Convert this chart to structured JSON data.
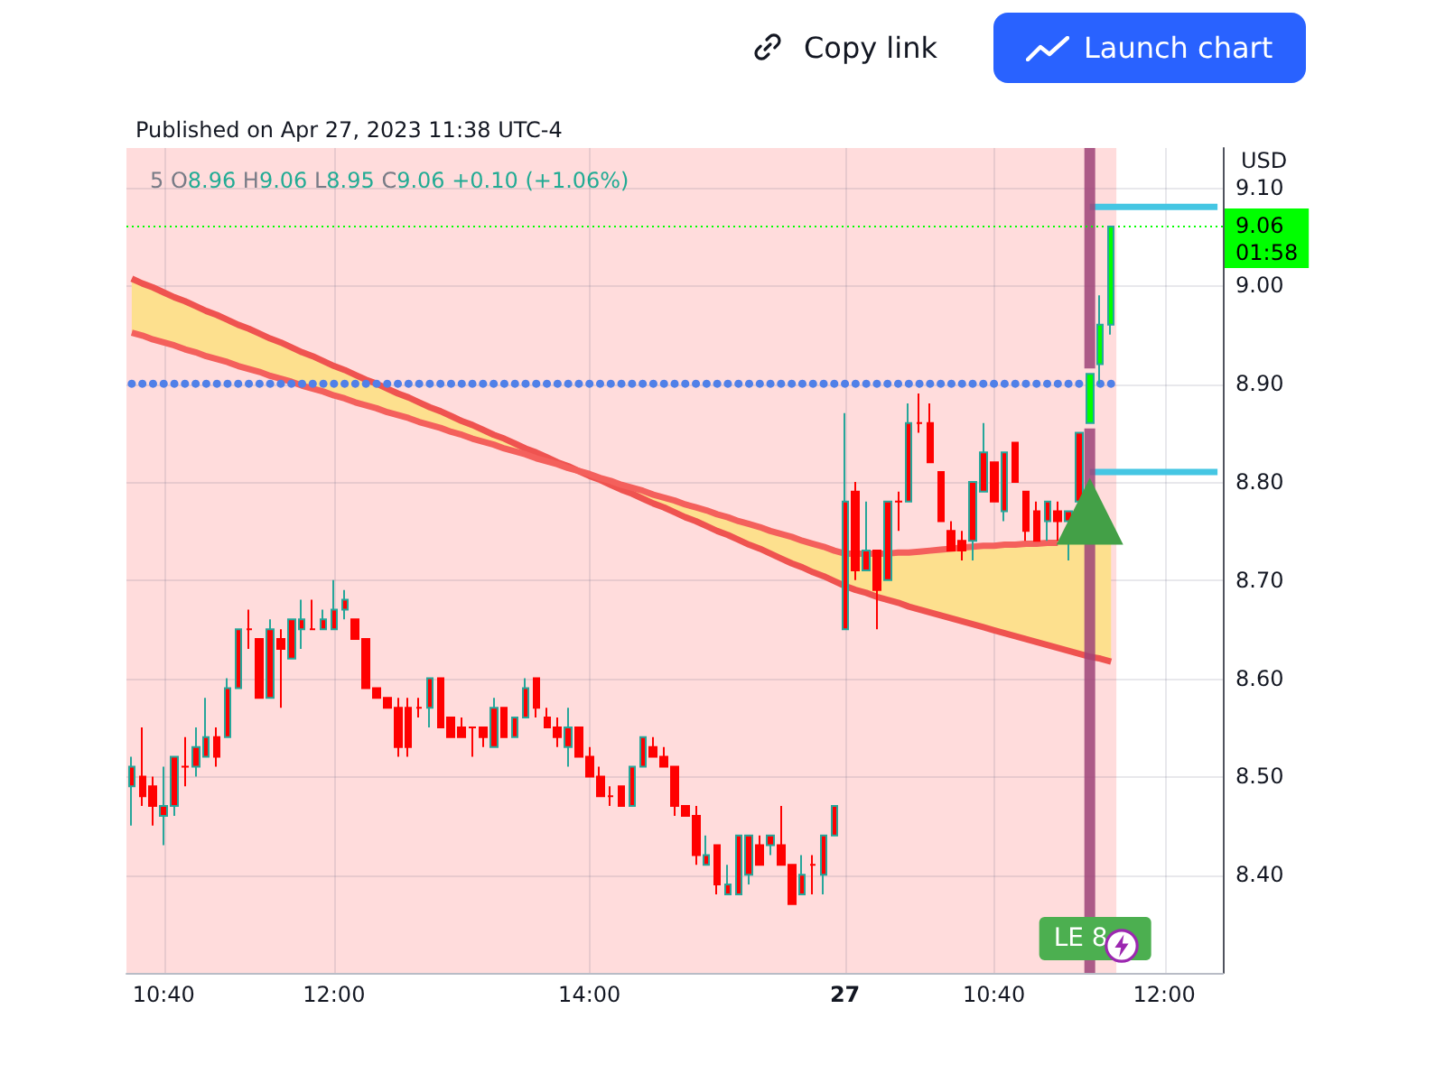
{
  "chart_data": {
    "type": "candlestick",
    "title": "Published on Apr 27, 2023 11:38 UTC-4",
    "subtitle": "5 O8.96 H9.06 L8.95 C9.06 +0.10 (+1.06%)",
    "ylabel": "USD",
    "categories": [
      null,
      null,
      null,
      "10:40",
      null,
      null,
      null,
      null,
      null,
      null,
      null,
      null,
      null,
      null,
      null,
      null,
      null,
      null,
      null,
      "12:00",
      null,
      null,
      null,
      null,
      null,
      null,
      null,
      null,
      null,
      null,
      null,
      null,
      null,
      null,
      null,
      null,
      null,
      null,
      null,
      null,
      null,
      null,
      null,
      "14:00",
      null,
      null,
      null,
      null,
      null,
      null,
      null,
      null,
      null,
      null,
      null,
      null,
      null,
      null,
      null,
      null,
      null,
      null,
      null,
      null,
      null,
      null,
      null,
      "27",
      null,
      null,
      null,
      null,
      null,
      null,
      null,
      null,
      null,
      null,
      null,
      null,
      null,
      "10:40",
      null,
      null,
      null,
      null,
      null,
      null,
      null,
      null,
      null,
      null,
      null,
      null,
      null,
      null,
      null,
      "12:00",
      null,
      null,
      null,
      null,
      null
    ],
    "ohlc": [
      [
        8.49,
        8.52,
        8.45,
        8.51
      ],
      [
        8.5,
        8.55,
        8.47,
        8.48
      ],
      [
        8.49,
        8.5,
        8.45,
        8.47
      ],
      [
        8.46,
        8.51,
        8.43,
        8.47
      ],
      [
        8.47,
        8.52,
        8.46,
        8.52
      ],
      [
        8.51,
        8.54,
        8.49,
        8.51
      ],
      [
        8.51,
        8.55,
        8.5,
        8.53
      ],
      [
        8.52,
        8.58,
        8.52,
        8.54
      ],
      [
        8.54,
        8.55,
        8.51,
        8.52
      ],
      [
        8.54,
        8.6,
        8.54,
        8.59
      ],
      [
        8.59,
        8.65,
        8.59,
        8.65
      ],
      [
        8.65,
        8.67,
        8.63,
        8.65
      ],
      [
        8.64,
        8.64,
        8.58,
        8.58
      ],
      [
        8.58,
        8.66,
        8.58,
        8.65
      ],
      [
        8.64,
        8.65,
        8.57,
        8.63
      ],
      [
        8.62,
        8.66,
        8.62,
        8.66
      ],
      [
        8.65,
        8.68,
        8.63,
        8.66
      ],
      [
        8.65,
        8.68,
        8.65,
        8.65
      ],
      [
        8.65,
        8.67,
        8.65,
        8.66
      ],
      [
        8.65,
        8.7,
        8.65,
        8.67
      ],
      [
        8.67,
        8.69,
        8.66,
        8.68
      ],
      [
        8.66,
        8.66,
        8.64,
        8.64
      ],
      [
        8.64,
        8.64,
        8.59,
        8.59
      ],
      [
        8.59,
        8.59,
        8.58,
        8.58
      ],
      [
        8.58,
        8.58,
        8.57,
        8.57
      ],
      [
        8.57,
        8.58,
        8.52,
        8.53
      ],
      [
        8.57,
        8.58,
        8.52,
        8.53
      ],
      [
        8.57,
        8.58,
        8.56,
        8.57
      ],
      [
        8.57,
        8.6,
        8.55,
        8.6
      ],
      [
        8.6,
        8.6,
        8.55,
        8.55
      ],
      [
        8.56,
        8.56,
        8.54,
        8.54
      ],
      [
        8.55,
        8.56,
        8.54,
        8.54
      ],
      [
        8.55,
        8.55,
        8.52,
        8.55
      ],
      [
        8.55,
        8.55,
        8.53,
        8.54
      ],
      [
        8.53,
        8.58,
        8.53,
        8.57
      ],
      [
        8.57,
        8.57,
        8.54,
        8.54
      ],
      [
        8.54,
        8.56,
        8.54,
        8.56
      ],
      [
        8.56,
        8.6,
        8.56,
        8.59
      ],
      [
        8.6,
        8.6,
        8.56,
        8.57
      ],
      [
        8.56,
        8.57,
        8.55,
        8.55
      ],
      [
        8.55,
        8.56,
        8.53,
        8.54
      ],
      [
        8.53,
        8.57,
        8.51,
        8.55
      ],
      [
        8.55,
        8.55,
        8.52,
        8.52
      ],
      [
        8.52,
        8.53,
        8.5,
        8.5
      ],
      [
        8.5,
        8.51,
        8.48,
        8.48
      ],
      [
        8.48,
        8.49,
        8.47,
        8.48
      ],
      [
        8.49,
        8.49,
        8.47,
        8.47
      ],
      [
        8.47,
        8.51,
        8.47,
        8.51
      ],
      [
        8.51,
        8.54,
        8.51,
        8.54
      ],
      [
        8.53,
        8.54,
        8.52,
        8.52
      ],
      [
        8.52,
        8.53,
        8.51,
        8.51
      ],
      [
        8.51,
        8.51,
        8.46,
        8.47
      ],
      [
        8.47,
        8.47,
        8.46,
        8.46
      ],
      [
        8.46,
        8.47,
        8.41,
        8.42
      ],
      [
        8.41,
        8.44,
        8.41,
        8.42
      ],
      [
        8.43,
        8.43,
        8.38,
        8.39
      ],
      [
        8.38,
        8.41,
        8.38,
        8.39
      ],
      [
        8.38,
        8.44,
        8.38,
        8.44
      ],
      [
        8.4,
        8.44,
        8.39,
        8.44
      ],
      [
        8.43,
        8.44,
        8.41,
        8.41
      ],
      [
        8.43,
        8.44,
        8.42,
        8.44
      ],
      [
        8.43,
        8.47,
        8.41,
        8.41
      ],
      [
        8.41,
        8.41,
        8.37,
        8.37
      ],
      [
        8.38,
        8.42,
        8.38,
        8.4
      ],
      [
        8.41,
        8.42,
        8.38,
        8.41
      ],
      [
        8.4,
        8.44,
        8.38,
        8.44
      ],
      [
        8.44,
        8.47,
        8.44,
        8.47
      ],
      [
        8.65,
        8.87,
        8.65,
        8.78
      ],
      [
        8.79,
        8.8,
        8.7,
        8.71
      ],
      [
        8.71,
        8.78,
        8.71,
        8.73
      ],
      [
        8.73,
        8.73,
        8.65,
        8.69
      ],
      [
        8.7,
        8.78,
        8.7,
        8.78
      ],
      [
        8.78,
        8.79,
        8.75,
        8.78
      ],
      [
        8.78,
        8.88,
        8.78,
        8.86
      ],
      [
        8.86,
        8.89,
        8.85,
        8.86
      ],
      [
        8.86,
        8.88,
        8.82,
        8.82
      ],
      [
        8.81,
        8.81,
        8.76,
        8.76
      ],
      [
        8.75,
        8.76,
        8.73,
        8.73
      ],
      [
        8.74,
        8.75,
        8.72,
        8.73
      ],
      [
        8.74,
        8.8,
        8.72,
        8.8
      ],
      [
        8.79,
        8.86,
        8.79,
        8.83
      ],
      [
        8.82,
        8.82,
        8.78,
        8.78
      ],
      [
        8.77,
        8.83,
        8.76,
        8.83
      ],
      [
        8.84,
        8.84,
        8.8,
        8.8
      ],
      [
        8.79,
        8.79,
        8.74,
        8.75
      ],
      [
        8.77,
        8.78,
        8.74,
        8.74
      ],
      [
        8.76,
        8.78,
        8.74,
        8.78
      ],
      [
        8.77,
        8.78,
        8.74,
        8.76
      ],
      [
        8.76,
        8.77,
        8.72,
        8.77
      ],
      [
        8.78,
        8.85,
        8.78,
        8.85
      ],
      [
        8.86,
        8.91,
        8.86,
        8.91
      ],
      [
        8.92,
        8.99,
        8.9,
        8.96
      ],
      [
        8.96,
        9.06,
        8.95,
        9.06
      ],
      null,
      null,
      null,
      null,
      null,
      null,
      null,
      null,
      null,
      null
    ],
    "colors": [
      "#ff0000",
      "#ff0000",
      "#ff0000",
      "#ff0000",
      "#ff0000",
      "#ff0000",
      "#ff0000",
      "#ff0000",
      "#ff0000",
      "#ff0000",
      "#ff0000",
      "#ff0000",
      "#ff0000",
      "#ff0000",
      "#ff0000",
      "#ff0000",
      "#ff0000",
      "#ff0000",
      "#ff0000",
      "#ff0000",
      "#ff0000",
      "#ff0000",
      "#ff0000",
      "#ff0000",
      "#ff0000",
      "#ff0000",
      "#ff0000",
      "#ff0000",
      "#ff0000",
      "#ff0000",
      "#ff0000",
      "#ff0000",
      "#ff0000",
      "#ff0000",
      "#ff0000",
      "#ff0000",
      "#ff0000",
      "#ff0000",
      "#ff0000",
      "#ff0000",
      "#ff0000",
      "#ff0000",
      "#ff0000",
      "#ff0000",
      "#ff0000",
      "#ff0000",
      "#ff0000",
      "#ff0000",
      "#ff0000",
      "#ff0000",
      "#ff0000",
      "#ff0000",
      "#ff0000",
      "#ff0000",
      "#ff0000",
      "#ff0000",
      "#ff0000",
      "#ff0000",
      "#ff0000",
      "#ff0000",
      "#ff0000",
      "#ff0000",
      "#ff0000",
      "#ff0000",
      "#ff0000",
      "#ff0000",
      "#ff0000",
      "#ff0000",
      "#ff0000",
      "#ff0000",
      "#ff0000",
      "#ff0000",
      "#ff0000",
      "#ff0000",
      "#ff0000",
      "#ff0000",
      "#ff0000",
      "#ff0000",
      "#ff0000",
      "#ff0000",
      "#ff0000",
      "#ff0000",
      "#ff0000",
      "#ff0000",
      "#ff0000",
      "#ff0000",
      "#ff0000",
      "#ff0000",
      "#ff0000",
      "#ff0000",
      "#00ff00",
      "#00ff00",
      "#00ff00",
      null,
      null,
      null,
      null,
      null,
      null,
      null,
      null,
      null,
      null
    ],
    "series": [
      {
        "type": "line",
        "color": "#ef5350",
        "values": [
          9.007,
          9.002,
          8.998,
          8.993,
          8.988,
          8.984,
          8.979,
          8.974,
          8.97,
          8.965,
          8.96,
          8.956,
          8.951,
          8.946,
          8.942,
          8.937,
          8.932,
          8.928,
          8.923,
          8.918,
          8.914,
          8.909,
          8.904,
          8.9,
          8.895,
          8.89,
          8.886,
          8.881,
          8.876,
          8.872,
          8.867,
          8.862,
          8.858,
          8.853,
          8.848,
          8.844,
          8.839,
          8.834,
          8.83,
          8.825,
          8.82,
          8.816,
          8.811,
          8.806,
          8.802,
          8.797,
          8.792,
          8.788,
          8.783,
          8.778,
          8.774,
          8.769,
          8.764,
          8.76,
          8.755,
          8.75,
          8.746,
          8.741,
          8.736,
          8.732,
          8.727,
          8.722,
          8.717,
          8.713,
          8.708,
          8.704,
          8.699,
          8.694,
          8.69,
          8.687,
          8.683,
          8.68,
          8.677,
          8.673,
          8.67,
          8.667,
          8.664,
          8.661,
          8.658,
          8.655,
          8.652,
          8.649,
          8.646,
          8.643,
          8.64,
          8.637,
          8.634,
          8.631,
          8.628,
          8.625,
          8.622,
          8.62,
          8.617,
          null,
          null,
          null,
          null,
          null,
          null,
          null,
          null,
          null,
          null
        ]
      },
      {
        "type": "line",
        "color": "#f4605c",
        "values": [
          8.952,
          8.949,
          8.945,
          8.942,
          8.939,
          8.935,
          8.932,
          8.928,
          8.925,
          8.922,
          8.918,
          8.915,
          8.912,
          8.908,
          8.905,
          8.902,
          8.898,
          8.895,
          8.892,
          8.888,
          8.885,
          8.881,
          8.878,
          8.875,
          8.871,
          8.868,
          8.865,
          8.861,
          8.858,
          8.855,
          8.851,
          8.848,
          8.844,
          8.841,
          8.838,
          8.834,
          8.831,
          8.828,
          8.824,
          8.821,
          8.818,
          8.814,
          8.811,
          8.808,
          8.804,
          8.801,
          8.797,
          8.794,
          8.791,
          8.787,
          8.784,
          8.781,
          8.777,
          8.774,
          8.771,
          8.767,
          8.764,
          8.76,
          8.757,
          8.754,
          8.75,
          8.747,
          8.744,
          8.74,
          8.737,
          8.734,
          8.73,
          8.727,
          8.727,
          8.727,
          8.727,
          8.727,
          8.728,
          8.728,
          8.729,
          8.73,
          8.731,
          8.732,
          8.733,
          8.734,
          8.735,
          8.735,
          8.736,
          8.736,
          8.737,
          8.737,
          8.738,
          8.738,
          null,
          null,
          null,
          null,
          null,
          null,
          null,
          null,
          null,
          null,
          null,
          null,
          null,
          null,
          null
        ],
        "lower": [
          8.952,
          8.949,
          8.945,
          8.942,
          8.939,
          8.935,
          8.932,
          8.928,
          8.925,
          8.922,
          8.918,
          8.915,
          8.912,
          8.908,
          8.905,
          8.902,
          8.898,
          8.895,
          8.892,
          8.888,
          8.885,
          8.881,
          8.878,
          8.875,
          8.871,
          8.868,
          8.865,
          8.861,
          8.858,
          8.855,
          8.851,
          8.848,
          8.844,
          8.841,
          8.838,
          8.834,
          8.831,
          8.828,
          8.824,
          8.821,
          8.818,
          8.814,
          8.811,
          8.806,
          8.802,
          8.797,
          8.792,
          8.788,
          8.783,
          8.778,
          8.774,
          8.769,
          8.764,
          8.76,
          8.755,
          8.75,
          8.746,
          8.741,
          8.736,
          8.732,
          8.727,
          8.722,
          8.717,
          8.713,
          8.708,
          8.704,
          8.699,
          8.694,
          null,
          8.687,
          null,
          null,
          8.677,
          8.673,
          8.67,
          8.667,
          8.664,
          8.661,
          8.658,
          8.655,
          8.652,
          8.649,
          8.646,
          8.643,
          8.64,
          8.637,
          8.634,
          8.631,
          8.628,
          8.625,
          8.622,
          8.62,
          8.617,
          null,
          null,
          null,
          null,
          null,
          null,
          null,
          null,
          null,
          null
        ],
        "upper": [
          9.007,
          9.002,
          8.998,
          8.993,
          8.988,
          8.984,
          8.979,
          8.974,
          8.97,
          8.965,
          8.96,
          8.956,
          8.951,
          8.946,
          8.942,
          8.937,
          8.932,
          8.928,
          8.923,
          8.918,
          8.914,
          8.909,
          8.904,
          8.9,
          8.895,
          8.89,
          8.886,
          8.881,
          8.876,
          8.872,
          8.867,
          8.862,
          8.858,
          8.853,
          8.848,
          8.844,
          8.839,
          8.834,
          8.83,
          8.825,
          8.82,
          8.816,
          8.811,
          8.808,
          8.804,
          8.801,
          8.797,
          8.794,
          8.791,
          8.787,
          8.784,
          8.781,
          8.777,
          8.774,
          8.771,
          8.767,
          8.764,
          8.76,
          8.757,
          8.754,
          8.75,
          8.747,
          8.744,
          8.74,
          8.737,
          8.734,
          8.73,
          8.727,
          null,
          8.727,
          null,
          null,
          8.728,
          8.728,
          8.729,
          8.73,
          8.731,
          8.732,
          8.733,
          8.734,
          8.735,
          8.735,
          8.736,
          8.736,
          8.737,
          8.737,
          8.738,
          8.738,
          8.739,
          8.739,
          8.739,
          8.739,
          8.739,
          null,
          null,
          null,
          null,
          null,
          null,
          null,
          null,
          null,
          null
        ]
      },
      {
        "type": "scatter",
        "color": "#5080e8",
        "marker": "circle",
        "values": [
          8.9,
          8.9,
          8.9,
          8.9,
          8.9,
          8.9,
          8.9,
          8.9,
          8.9,
          8.9,
          8.9,
          8.9,
          8.9,
          8.9,
          8.9,
          8.9,
          8.9,
          8.9,
          8.9,
          8.9,
          8.9,
          8.9,
          8.9,
          8.9,
          8.9,
          8.9,
          8.9,
          8.9,
          8.9,
          8.9,
          8.9,
          8.9,
          8.9,
          8.9,
          8.9,
          8.9,
          8.9,
          8.9,
          8.9,
          8.9,
          8.9,
          8.9,
          8.9,
          8.9,
          8.9,
          8.9,
          8.9,
          8.9,
          8.9,
          8.9,
          8.9,
          8.9,
          8.9,
          8.9,
          8.9,
          8.9,
          8.9,
          8.9,
          8.9,
          8.9,
          8.9,
          8.9,
          8.9,
          8.9,
          8.9,
          8.9,
          8.9,
          8.9,
          8.9,
          8.9,
          8.9,
          8.9,
          8.9,
          8.9,
          8.9,
          8.9,
          8.9,
          8.9,
          8.9,
          8.9,
          8.9,
          8.9,
          8.9,
          8.9,
          8.9,
          8.9,
          8.9,
          8.9,
          8.9,
          8.9,
          null,
          8.9,
          8.9,
          null,
          null,
          null,
          null,
          null,
          null,
          null,
          null,
          null,
          null
        ]
      },
      {
        "type": "line",
        "color": "#45c6e3",
        "values": [
          null,
          null,
          null,
          null,
          null,
          null,
          null,
          null,
          null,
          null,
          null,
          null,
          null,
          null,
          null,
          null,
          null,
          null,
          null,
          null,
          null,
          null,
          null,
          null,
          null,
          null,
          null,
          null,
          null,
          null,
          null,
          null,
          null,
          null,
          null,
          null,
          null,
          null,
          null,
          null,
          null,
          null,
          null,
          null,
          null,
          null,
          null,
          null,
          null,
          null,
          null,
          null,
          null,
          null,
          null,
          null,
          null,
          null,
          null,
          null,
          null,
          null,
          null,
          null,
          null,
          null,
          null,
          null,
          null,
          null,
          null,
          null,
          null,
          null,
          null,
          null,
          null,
          null,
          null,
          null,
          null,
          null,
          null,
          null,
          null,
          null,
          null,
          null,
          null,
          null,
          9.08,
          9.08,
          9.08,
          9.08,
          9.08,
          9.08,
          9.08,
          9.08,
          9.08,
          9.08,
          9.08,
          9.08,
          9.08
        ]
      },
      {
        "type": "line",
        "color": "#45c6e3",
        "values": [
          null,
          null,
          null,
          null,
          null,
          null,
          null,
          null,
          null,
          null,
          null,
          null,
          null,
          null,
          null,
          null,
          null,
          null,
          null,
          null,
          null,
          null,
          null,
          null,
          null,
          null,
          null,
          null,
          null,
          null,
          null,
          null,
          null,
          null,
          null,
          null,
          null,
          null,
          null,
          null,
          null,
          null,
          null,
          null,
          null,
          null,
          null,
          null,
          null,
          null,
          null,
          null,
          null,
          null,
          null,
          null,
          null,
          null,
          null,
          null,
          null,
          null,
          null,
          null,
          null,
          null,
          null,
          null,
          null,
          null,
          null,
          null,
          null,
          null,
          null,
          null,
          null,
          null,
          null,
          null,
          null,
          null,
          null,
          null,
          null,
          null,
          null,
          null,
          null,
          null,
          8.81,
          8.81,
          8.81,
          8.81,
          8.81,
          8.81,
          8.81,
          8.81,
          8.81,
          8.81,
          8.81,
          8.81,
          8.81
        ]
      },
      {
        "type": "scatter",
        "color": "#43a047",
        "marker": "triangle",
        "values": [
          null,
          null,
          null,
          null,
          null,
          null,
          null,
          null,
          null,
          null,
          null,
          null,
          null,
          null,
          null,
          null,
          null,
          null,
          null,
          null,
          null,
          null,
          null,
          null,
          null,
          null,
          null,
          null,
          null,
          null,
          null,
          null,
          null,
          null,
          null,
          null,
          null,
          null,
          null,
          null,
          null,
          null,
          null,
          null,
          null,
          null,
          null,
          null,
          null,
          null,
          null,
          null,
          null,
          null,
          null,
          null,
          null,
          null,
          null,
          null,
          null,
          null,
          null,
          null,
          null,
          null,
          null,
          null,
          null,
          null,
          null,
          null,
          null,
          null,
          null,
          null,
          null,
          null,
          null,
          null,
          null,
          null,
          null,
          null,
          null,
          null,
          null,
          null,
          null,
          null,
          8.77,
          null,
          null,
          null,
          null,
          null,
          null,
          null,
          null,
          null,
          null,
          null,
          null
        ]
      }
    ],
    "ylim": [
      8.3,
      9.14
    ],
    "yticks": [
      {
        "value": 8.4,
        "label": "8.40"
      },
      {
        "value": 8.5,
        "label": "8.50"
      },
      {
        "value": 8.6,
        "label": "8.60"
      },
      {
        "value": 8.7,
        "label": "8.70"
      },
      {
        "value": 8.8,
        "label": "8.80"
      },
      {
        "value": 8.9,
        "label": "8.90"
      },
      {
        "value": 9.0,
        "label": "9.00"
      },
      {
        "value": 9.1,
        "label": "9.10"
      }
    ],
    "grid": true,
    "ref_lines": [
      {
        "axis": "y",
        "value": 9.06,
        "label": "9.06\n01:58",
        "color": "#00ff00",
        "line_style": "dotted"
      }
    ],
    "annotations": [
      "Copy link",
      "Launch chart",
      "LE 8"
    ]
  }
}
